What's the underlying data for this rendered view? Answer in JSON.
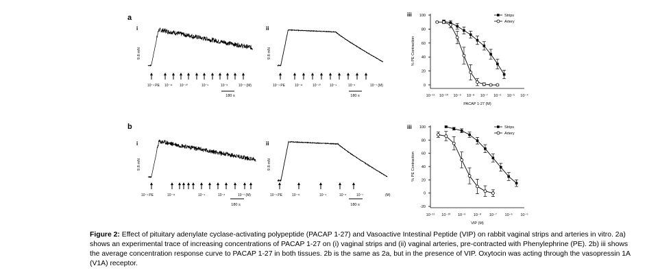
{
  "figure": {
    "panel_a_label": "a",
    "panel_b_label": "b",
    "sub_i": "i",
    "sub_ii": "ii",
    "sub_iii": "iii"
  },
  "traces": {
    "scale_label": "9.8 mN",
    "time_label": "180 s",
    "a_i_ticks": [
      "10⁻¹ PE",
      "10⁻¹¹",
      "10⁻¹⁰",
      "10⁻⁹",
      "10⁻⁸",
      "10⁻⁷ (M)"
    ],
    "a_ii_ticks": [
      "10⁻¹ PE",
      "10⁻¹¹",
      "10⁻¹⁰",
      "10⁻⁹",
      "10⁻⁸",
      "10⁻⁷ (M)"
    ],
    "b_i_ticks": [
      "10⁻¹ PE",
      "10⁻¹¹",
      "10⁻⁹",
      "10⁻⁸",
      "10⁻⁷ (M)"
    ],
    "b_ii_ticks": [
      "10⁻¹ PE",
      "10⁻¹¹",
      "10⁻⁹",
      "10⁻⁸",
      "10⁻⁷",
      "(M)"
    ]
  },
  "chart_data": [
    {
      "type": "line",
      "panel": "a iii",
      "xlabel": "PACAP 1-27 (M)",
      "ylabel": "% PE Contraction",
      "x_ticks": [
        -11,
        -10,
        -9,
        -8,
        -7,
        -6,
        -5,
        -4
      ],
      "x_tick_labels": [
        "10⁻¹¹",
        "10⁻¹⁰",
        "10⁻⁹",
        "10⁻⁸",
        "10⁻⁷",
        "10⁻⁶",
        "10⁻⁵",
        "10⁻⁴"
      ],
      "y_ticks": [
        0,
        20,
        40,
        60,
        80,
        100
      ],
      "ylim": [
        -5,
        102
      ],
      "xlim": [
        -11,
        -4
      ],
      "legend_position": "top-right",
      "series": [
        {
          "name": "Strips",
          "marker": "filled",
          "x": [
            -10,
            -9.5,
            -9,
            -8.5,
            -8,
            -7.5,
            -7,
            -6.5,
            -6,
            -5.5
          ],
          "y": [
            91,
            89,
            84,
            78,
            72,
            64,
            56,
            44,
            30,
            15
          ],
          "err": [
            2,
            3,
            4,
            5,
            5,
            6,
            6,
            7,
            7,
            6
          ]
        },
        {
          "name": "Artery",
          "marker": "open",
          "x": [
            -10.5,
            -10,
            -9.5,
            -9,
            -8.5,
            -8,
            -7.5,
            -7,
            -6.5,
            -6
          ],
          "y": [
            90,
            90,
            86,
            68,
            42,
            18,
            4,
            1,
            0,
            0
          ],
          "err": [
            1,
            2,
            4,
            9,
            12,
            11,
            5,
            2,
            1,
            1
          ]
        }
      ]
    },
    {
      "type": "line",
      "panel": "b iii",
      "xlabel": "VIP (M)",
      "ylabel": "% PE Contraction",
      "x_ticks": [
        -11,
        -10,
        -9,
        -8,
        -7,
        -6,
        -5
      ],
      "x_tick_labels": [
        "10⁻¹¹",
        "10⁻¹⁰",
        "10⁻⁹",
        "10⁻⁸",
        "10⁻⁷",
        "10⁻⁶",
        "10⁻⁵"
      ],
      "y_ticks": [
        -20,
        0,
        20,
        40,
        60,
        80,
        100
      ],
      "ylim": [
        -22,
        102
      ],
      "xlim": [
        -11,
        -5
      ],
      "legend_position": "top-right",
      "series": [
        {
          "name": "Strips",
          "marker": "filled",
          "x": [
            -10,
            -9.5,
            -9,
            -8.5,
            -8,
            -7.5,
            -7,
            -6.5,
            -6,
            -5.5
          ],
          "y": [
            100,
            97,
            94,
            88,
            79,
            67,
            53,
            39,
            25,
            15
          ],
          "err": [
            1,
            2,
            3,
            4,
            5,
            6,
            6,
            6,
            6,
            5
          ]
        },
        {
          "name": "Artery",
          "marker": "open",
          "x": [
            -10.5,
            -10,
            -9.5,
            -9,
            -8.5,
            -8,
            -7.5,
            -7
          ],
          "y": [
            88,
            86,
            75,
            50,
            26,
            10,
            3,
            0
          ],
          "err": [
            4,
            7,
            10,
            12,
            12,
            11,
            8,
            5
          ]
        }
      ]
    }
  ],
  "caption": {
    "lead": "Figure 2:",
    "text": " Effect of pituitary adenylate cyclase-activating polypeptide (PACAP 1-27) and Vasoactive Intestinal Peptide (VIP) on rabbit vaginal strips and arteries in vitro. 2a) shows an experimental trace of increasing concentrations of PACAP 1-27 on (i) vaginal strips and (ii) vaginal arteries, pre-contracted with Phenylephrine (PE). 2b) iii shows the average concentration response curve to PACAP 1-27 in both tissues. 2b is the same as 2a, but in the presence of VIP. Oxytocin was acting through the vasopressin 1A (V1A) receptor."
  }
}
